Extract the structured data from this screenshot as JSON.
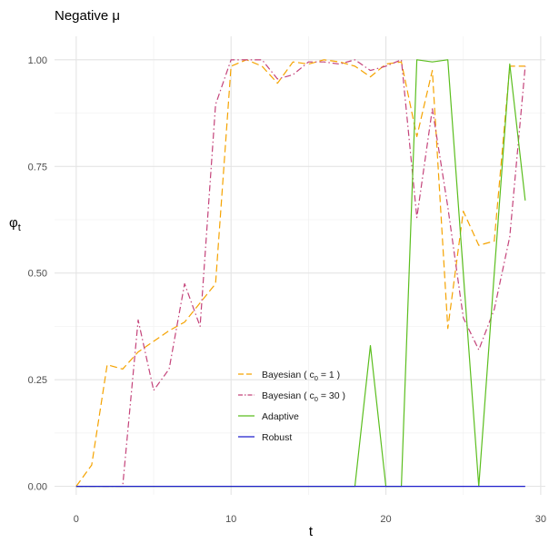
{
  "chart_data": {
    "type": "line",
    "title": "Negative μ",
    "xlabel": "t",
    "ylabel": "φ_t",
    "xlim": [
      -1.4,
      30.3
    ],
    "ylim": [
      -0.02,
      1.055
    ],
    "x_ticks": [
      0,
      10,
      20,
      30
    ],
    "x_tick_labels": [
      "0",
      "10",
      "20",
      "30"
    ],
    "y_ticks": [
      0,
      0.25,
      0.5,
      0.75,
      1.0
    ],
    "y_tick_labels": [
      "0.00",
      "0.25",
      "0.50",
      "0.75",
      "1.00"
    ],
    "grid": true,
    "legend_position": "inside-bottom-center",
    "series": [
      {
        "name": "Bayesian ( c0 = 1 )",
        "name_main": "Bayesian (",
        "name_sub": "0",
        "name_tail": " = 1 )",
        "color": "#F5A300",
        "dash": "8,4",
        "x": [
          0,
          1,
          2,
          3,
          4,
          5,
          6,
          7,
          8,
          9,
          10,
          11,
          12,
          13,
          14,
          15,
          16,
          17,
          18,
          19,
          20,
          21,
          22,
          23,
          24,
          25,
          26,
          27,
          28,
          29
        ],
        "y": [
          0.0,
          0.05,
          0.285,
          0.275,
          0.315,
          0.34,
          0.365,
          0.385,
          0.43,
          0.475,
          0.985,
          1.0,
          0.985,
          0.945,
          0.995,
          0.99,
          1.0,
          0.995,
          0.985,
          0.96,
          0.99,
          0.995,
          0.82,
          0.975,
          0.37,
          0.645,
          0.565,
          0.575,
          0.985,
          0.985
        ]
      },
      {
        "name": "Bayesian ( c0 = 30 )",
        "name_main": "Bayesian (",
        "name_sub": "0",
        "name_tail": " = 30 )",
        "color": "#C4437A",
        "dash": "7,3,1.5,3",
        "x": [
          0,
          1,
          2,
          3,
          4,
          5,
          6,
          7,
          8,
          9,
          10,
          11,
          12,
          13,
          14,
          15,
          16,
          17,
          18,
          19,
          20,
          21,
          22,
          23,
          24,
          25,
          26,
          27,
          28,
          29
        ],
        "y": [
          0.0,
          0.0,
          0.0,
          0.0,
          0.39,
          0.225,
          0.275,
          0.475,
          0.375,
          0.895,
          1.0,
          1.0,
          1.0,
          0.955,
          0.965,
          0.995,
          0.995,
          0.99,
          1.0,
          0.975,
          0.985,
          1.0,
          0.63,
          0.885,
          0.655,
          0.395,
          0.32,
          0.415,
          0.585,
          0.985
        ]
      },
      {
        "name": "Adaptive",
        "color": "#5BBE1E",
        "dash": "",
        "x": [
          0,
          1,
          2,
          3,
          4,
          5,
          6,
          7,
          8,
          9,
          10,
          11,
          12,
          13,
          14,
          15,
          16,
          17,
          18,
          19,
          20,
          21,
          22,
          23,
          24,
          25,
          26,
          27,
          28,
          29
        ],
        "y": [
          0,
          0,
          0,
          0,
          0,
          0,
          0,
          0,
          0,
          0,
          0,
          0,
          0,
          0,
          0,
          0,
          0,
          0,
          0,
          0.33,
          0,
          0,
          1.0,
          0.995,
          1.0,
          0.5,
          0.0,
          0.5,
          0.99,
          0.67
        ]
      },
      {
        "name": "Robust",
        "color": "#1F1FCC",
        "dash": "",
        "x": [
          0,
          29
        ],
        "y": [
          0,
          0
        ]
      }
    ]
  },
  "legend": {
    "items": [
      {
        "main": "Bayesian (",
        "sub": "0",
        "tail": " = 1 )"
      },
      {
        "main": "Bayesian (",
        "sub": "0",
        "tail": " = 30 )"
      },
      {
        "main": "Adaptive",
        "sub": "",
        "tail": ""
      },
      {
        "main": "Robust",
        "sub": "",
        "tail": ""
      }
    ]
  }
}
